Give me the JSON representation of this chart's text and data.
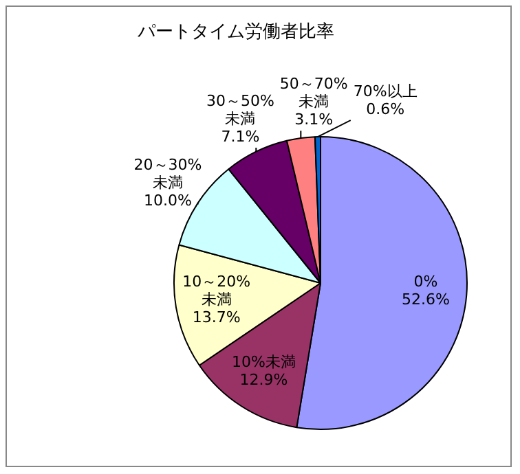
{
  "chart_data": {
    "type": "pie",
    "title": "パートタイム労働者比率",
    "categories": [
      "0%",
      "10%未満",
      "10～20%未満",
      "20～30%未満",
      "30～50%未満",
      "50～70%未満",
      "70%以上"
    ],
    "values": [
      52.6,
      12.9,
      13.7,
      10.0,
      7.1,
      3.1,
      0.6
    ],
    "colors": [
      "#9999ff",
      "#993366",
      "#ffffcc",
      "#ccffff",
      "#660066",
      "#ff8080",
      "#0066cc"
    ],
    "value_labels": [
      "52.6%",
      "12.9%",
      "13.7%",
      "10.0%",
      "7.1%",
      "3.1%",
      "0.6%"
    ],
    "legend": false
  }
}
